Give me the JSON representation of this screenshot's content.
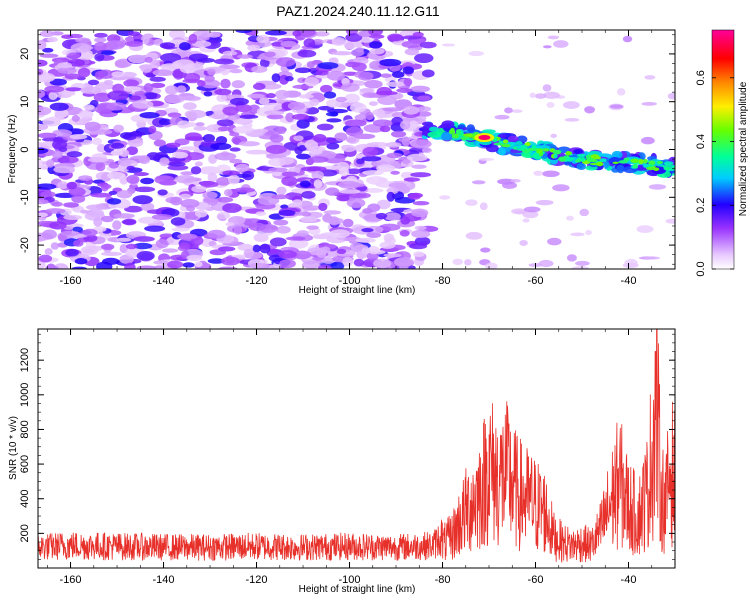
{
  "title": "PAZ1.2024.240.11.12.G11",
  "chart_data": [
    {
      "type": "heatmap",
      "xlabel": "Height of straight line (km)",
      "ylabel": "Frequency (Hz)",
      "xlim": [
        -167,
        -30
      ],
      "ylim": [
        -25,
        25
      ],
      "xticks": [
        -160,
        -140,
        -120,
        -100,
        -80,
        -60,
        -40
      ],
      "yticks": [
        -20,
        -10,
        0,
        10,
        20
      ],
      "colorbar": {
        "label": "Normalized spectral amplitude",
        "range": [
          0.0,
          0.75
        ],
        "ticks": [
          "0.0",
          "0.2",
          "0.4",
          "0.6"
        ]
      },
      "signal_trace": {
        "description_points_x": [
          -84,
          -78,
          -72,
          -68,
          -62,
          -56,
          -50,
          -44,
          -38,
          -32
        ],
        "description_points_y": [
          4,
          3.5,
          2.5,
          1.5,
          0.5,
          -1,
          -2,
          -2.5,
          -3,
          -3.5
        ],
        "peak": {
          "x": -71,
          "y": 2.5,
          "amplitude": 0.72
        }
      }
    },
    {
      "type": "line",
      "xlabel": "Height of straight line (km)",
      "ylabel": "SNR (10 * v/v)",
      "xlim": [
        -167,
        -30
      ],
      "ylim": [
        0,
        1380
      ],
      "xticks": [
        -160,
        -140,
        -120,
        -100,
        -80,
        -60,
        -40
      ],
      "yticks": [
        200,
        400,
        600,
        800,
        1000,
        1200
      ],
      "series": [
        {
          "color": "#e8302a",
          "x": [
            -167,
            -160,
            -150,
            -140,
            -130,
            -120,
            -110,
            -100,
            -90,
            -82,
            -78,
            -75,
            -72,
            -70,
            -68,
            -66,
            -64,
            -62,
            -60,
            -58,
            -56,
            -54,
            -52,
            -50,
            -48,
            -46,
            -44,
            -42,
            -40,
            -38,
            -36,
            -35,
            -34,
            -33,
            -32,
            -31,
            -30
          ],
          "values": [
            120,
            130,
            125,
            120,
            120,
            125,
            120,
            125,
            120,
            130,
            250,
            450,
            600,
            800,
            700,
            750,
            600,
            550,
            500,
            450,
            250,
            200,
            180,
            200,
            180,
            300,
            500,
            700,
            500,
            400,
            600,
            900,
            1350,
            600,
            500,
            800,
            700
          ]
        }
      ]
    }
  ]
}
